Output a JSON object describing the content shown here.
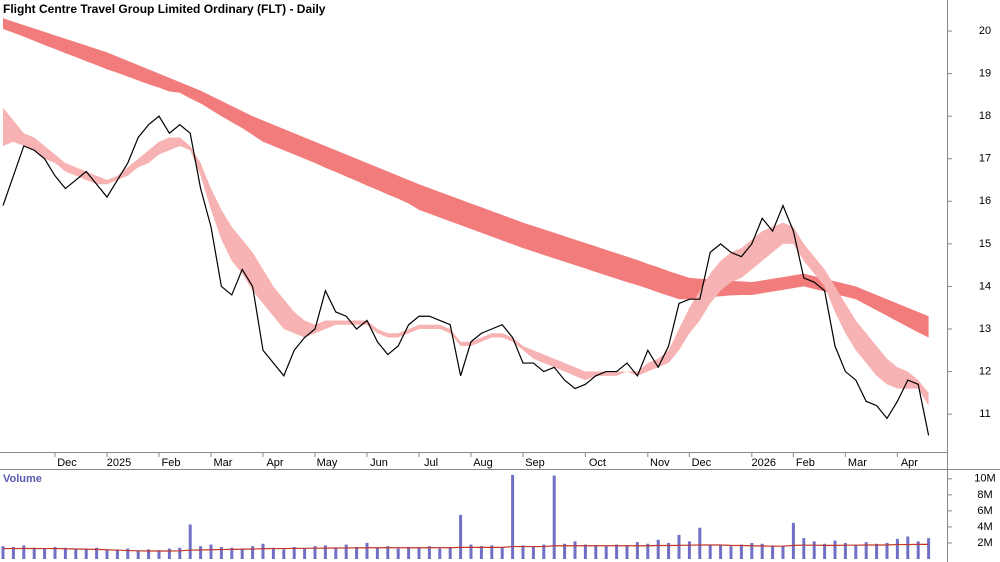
{
  "chart_data": [
    {
      "type": "line",
      "title": "Flight Centre Travel Group Limited Ordinary (FLT) - Daily",
      "categories": [
        null,
        null,
        null,
        null,
        null,
        "Dec",
        null,
        null,
        null,
        null,
        "2025",
        null,
        null,
        null,
        null,
        "Feb",
        null,
        null,
        null,
        null,
        "Mar",
        null,
        null,
        null,
        null,
        "Apr",
        null,
        null,
        null,
        null,
        "May",
        null,
        null,
        null,
        null,
        "Jun",
        null,
        null,
        null,
        null,
        "Jul",
        null,
        null,
        null,
        null,
        "Aug",
        null,
        null,
        null,
        null,
        "Sep",
        null,
        null,
        null,
        null,
        null,
        "Oct",
        null,
        null,
        null,
        null,
        null,
        "Nov",
        null,
        null,
        null,
        "Dec",
        null,
        null,
        null,
        null,
        null,
        "2026",
        null,
        null,
        null,
        "Feb",
        null,
        null,
        null,
        null,
        "Mar",
        null,
        null,
        null,
        null,
        "Apr",
        null,
        null,
        null
      ],
      "close": {
        "color": "#000000",
        "values": [
          15.9,
          16.6,
          17.3,
          17.2,
          17.0,
          16.6,
          16.3,
          16.5,
          16.7,
          16.4,
          16.1,
          16.5,
          16.9,
          17.5,
          17.8,
          18.0,
          17.6,
          17.8,
          17.6,
          16.3,
          15.4,
          14.0,
          13.8,
          14.4,
          14.0,
          12.5,
          12.2,
          11.9,
          12.5,
          12.8,
          13.0,
          13.9,
          13.4,
          13.3,
          13.0,
          13.2,
          12.7,
          12.4,
          12.6,
          13.1,
          13.3,
          13.3,
          13.2,
          13.1,
          11.9,
          12.7,
          12.9,
          13.0,
          13.1,
          12.8,
          12.2,
          12.2,
          12.0,
          12.1,
          11.8,
          11.6,
          11.7,
          11.9,
          12.0,
          12.0,
          12.2,
          11.9,
          12.5,
          12.1,
          12.6,
          13.6,
          13.7,
          13.7,
          14.8,
          15.0,
          14.8,
          14.7,
          15.0,
          15.6,
          15.3,
          15.9,
          15.3,
          14.2,
          14.1,
          13.9,
          12.6,
          12.0,
          11.8,
          11.3,
          11.2,
          10.9,
          11.3,
          11.8,
          11.7,
          10.5
        ]
      },
      "long_band": {
        "color": "#f27b7b",
        "upper": [
          20.3,
          20.22,
          20.14,
          20.06,
          19.98,
          19.9,
          19.82,
          19.74,
          19.66,
          19.58,
          19.5,
          19.4,
          19.3,
          19.2,
          19.1,
          19.0,
          18.9,
          18.8,
          18.7,
          18.6,
          18.48,
          18.36,
          18.24,
          18.12,
          18.0,
          17.9,
          17.8,
          17.7,
          17.6,
          17.5,
          17.4,
          17.3,
          17.2,
          17.1,
          17.0,
          16.9,
          16.8,
          16.7,
          16.6,
          16.5,
          16.4,
          16.31,
          16.22,
          16.13,
          16.04,
          15.95,
          15.86,
          15.77,
          15.68,
          15.59,
          15.5,
          15.42,
          15.34,
          15.26,
          15.18,
          15.1,
          15.02,
          14.94,
          14.86,
          14.78,
          14.7,
          14.62,
          14.53,
          14.45,
          14.36,
          14.28,
          14.2,
          14.18,
          14.17,
          14.15,
          14.13,
          14.12,
          14.1,
          14.14,
          14.18,
          14.22,
          14.26,
          14.3,
          14.24,
          14.18,
          14.12,
          14.06,
          14.0,
          13.9,
          13.8,
          13.7,
          13.6,
          13.5,
          13.4,
          13.3
        ],
        "lower": [
          20.05,
          19.96,
          19.87,
          19.77,
          19.67,
          19.58,
          19.48,
          19.39,
          19.29,
          19.2,
          19.1,
          19.02,
          18.93,
          18.84,
          18.75,
          18.67,
          18.58,
          18.55,
          18.42,
          18.3,
          18.15,
          18.0,
          17.86,
          17.72,
          17.56,
          17.4,
          17.3,
          17.2,
          17.1,
          17.0,
          16.9,
          16.79,
          16.69,
          16.58,
          16.48,
          16.37,
          16.27,
          16.16,
          16.06,
          15.95,
          15.8,
          15.71,
          15.62,
          15.53,
          15.44,
          15.35,
          15.26,
          15.17,
          15.08,
          14.99,
          14.9,
          14.82,
          14.74,
          14.66,
          14.58,
          14.5,
          14.42,
          14.34,
          14.26,
          14.18,
          14.1,
          14.03,
          13.95,
          13.86,
          13.78,
          13.7,
          13.7,
          13.72,
          13.75,
          13.77,
          13.79,
          13.8,
          13.8,
          13.84,
          13.88,
          13.92,
          13.96,
          14.0,
          13.94,
          13.88,
          13.82,
          13.76,
          13.7,
          13.57,
          13.44,
          13.31,
          13.18,
          13.05,
          12.92,
          12.8
        ]
      },
      "short_band": {
        "color": "#f7b3b3",
        "upper": [
          18.2,
          17.9,
          17.6,
          17.5,
          17.3,
          17.1,
          16.9,
          16.8,
          16.7,
          16.6,
          16.5,
          16.6,
          16.8,
          17.0,
          17.2,
          17.4,
          17.5,
          17.5,
          17.3,
          16.9,
          16.3,
          15.8,
          15.4,
          15.1,
          14.8,
          14.4,
          14.0,
          13.7,
          13.4,
          13.2,
          13.1,
          13.2,
          13.2,
          13.2,
          13.2,
          13.2,
          13.0,
          12.9,
          12.9,
          13.0,
          13.1,
          13.1,
          13.1,
          13.0,
          12.7,
          12.7,
          12.8,
          12.9,
          12.9,
          12.8,
          12.6,
          12.5,
          12.4,
          12.3,
          12.2,
          12.1,
          12.0,
          12.0,
          12.0,
          12.0,
          12.0,
          12.0,
          12.2,
          12.3,
          12.5,
          13.0,
          13.5,
          13.9,
          14.3,
          14.6,
          14.8,
          14.9,
          15.1,
          15.3,
          15.4,
          15.5,
          15.4,
          15.0,
          14.7,
          14.4,
          14.0,
          13.6,
          13.2,
          12.9,
          12.6,
          12.3,
          12.1,
          12.0,
          11.8,
          11.5
        ],
        "lower": [
          17.3,
          17.4,
          17.3,
          17.2,
          17.0,
          16.9,
          16.7,
          16.6,
          16.5,
          16.4,
          16.4,
          16.5,
          16.6,
          16.8,
          16.9,
          17.1,
          17.2,
          17.3,
          17.2,
          16.6,
          15.8,
          15.1,
          14.6,
          14.3,
          13.9,
          13.6,
          13.3,
          13.0,
          12.9,
          12.8,
          12.9,
          13.0,
          13.1,
          13.1,
          13.1,
          13.1,
          12.9,
          12.8,
          12.8,
          12.9,
          13.0,
          13.0,
          13.0,
          12.9,
          12.6,
          12.6,
          12.7,
          12.8,
          12.8,
          12.7,
          12.5,
          12.3,
          12.2,
          12.1,
          12.0,
          11.9,
          11.8,
          11.9,
          11.9,
          11.9,
          12.0,
          11.9,
          12.0,
          12.1,
          12.2,
          12.5,
          12.9,
          13.2,
          13.6,
          13.9,
          14.1,
          14.2,
          14.4,
          14.6,
          14.8,
          15.0,
          15.0,
          14.6,
          14.3,
          14.0,
          13.4,
          12.9,
          12.5,
          12.2,
          11.9,
          11.7,
          11.6,
          11.6,
          11.6,
          11.2
        ]
      },
      "ylim": [
        10.11,
        20.73
      ],
      "yticks": [
        11,
        12,
        13,
        14,
        15,
        16,
        17,
        18,
        19,
        20
      ]
    },
    {
      "type": "bar",
      "title": "Volume",
      "color": "#7070c8",
      "values": [
        1.6,
        1.5,
        1.7,
        1.4,
        1.3,
        1.5,
        1.4,
        1.2,
        1.3,
        1.4,
        1.1,
        1.2,
        1.3,
        1.0,
        1.2,
        1.1,
        1.3,
        1.4,
        4.3,
        1.6,
        1.8,
        1.5,
        1.4,
        1.3,
        1.6,
        1.9,
        1.4,
        1.2,
        1.5,
        1.3,
        1.6,
        1.7,
        1.4,
        1.8,
        1.5,
        2.0,
        1.4,
        1.6,
        1.3,
        1.5,
        1.4,
        1.6,
        1.3,
        1.5,
        5.5,
        1.8,
        1.6,
        1.7,
        1.5,
        10.5,
        1.7,
        1.6,
        1.8,
        10.4,
        1.9,
        2.2,
        1.8,
        1.7,
        1.6,
        1.8,
        1.7,
        2.1,
        1.9,
        2.4,
        2.0,
        3.0,
        2.2,
        3.9,
        1.8,
        1.7,
        1.6,
        1.8,
        2.0,
        1.9,
        1.7,
        1.6,
        4.5,
        2.6,
        2.2,
        1.9,
        2.3,
        2.0,
        1.8,
        2.1,
        1.9,
        2.0,
        2.5,
        2.8,
        2.2,
        2.6
      ],
      "average": {
        "color": "#c0392b",
        "values": [
          1.3,
          1.3,
          1.32,
          1.31,
          1.3,
          1.3,
          1.28,
          1.25,
          1.22,
          1.2,
          1.15,
          1.1,
          1.05,
          1.02,
          1.0,
          1.0,
          1.0,
          1.02,
          1.1,
          1.12,
          1.15,
          1.18,
          1.2,
          1.22,
          1.25,
          1.28,
          1.3,
          1.3,
          1.32,
          1.33,
          1.35,
          1.36,
          1.37,
          1.38,
          1.39,
          1.4,
          1.4,
          1.4,
          1.4,
          1.4,
          1.4,
          1.4,
          1.4,
          1.4,
          1.45,
          1.45,
          1.45,
          1.45,
          1.45,
          1.55,
          1.55,
          1.55,
          1.55,
          1.65,
          1.65,
          1.65,
          1.65,
          1.65,
          1.65,
          1.65,
          1.65,
          1.65,
          1.65,
          1.68,
          1.68,
          1.7,
          1.72,
          1.75,
          1.75,
          1.75,
          1.7,
          1.68,
          1.65,
          1.62,
          1.6,
          1.6,
          1.7,
          1.72,
          1.72,
          1.7,
          1.7,
          1.72,
          1.72,
          1.75,
          1.75,
          1.75,
          1.8,
          1.8,
          1.82,
          1.82
        ]
      },
      "ylim": [
        0,
        11.1
      ],
      "yticks": [
        {
          "value": 2,
          "label": "2M"
        },
        {
          "value": 4,
          "label": "4M"
        },
        {
          "value": 6,
          "label": "6M"
        },
        {
          "value": 8,
          "label": "8M"
        },
        {
          "value": 10,
          "label": "10M"
        }
      ]
    }
  ]
}
